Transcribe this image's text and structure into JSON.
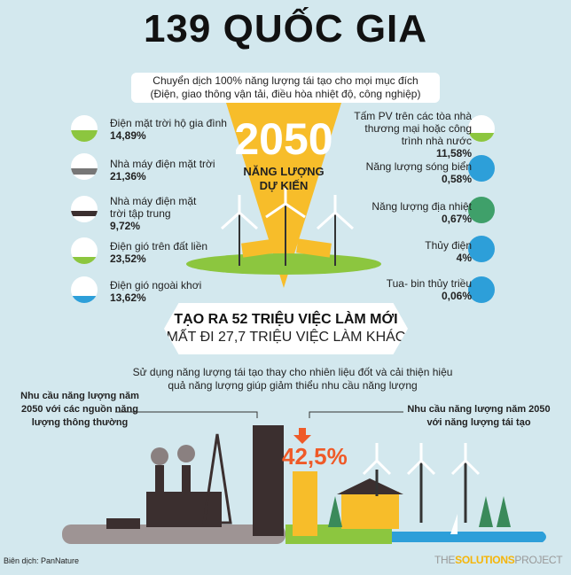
{
  "title": "139 QUỐC GIA",
  "top_box": {
    "line1": "Chuyển dịch 100% năng lượng tái tạo cho mọi mục đích",
    "line2": "(Điện, giao thông vận tải, điều hòa nhiệt độ, công nghiệp)"
  },
  "center": {
    "year": "2050",
    "label1": "NĂNG LƯỢNG",
    "label2": "DỰ KIẾN"
  },
  "left_items": [
    {
      "label": "Điện mặt trời hộ gia đình",
      "value": "14,89%",
      "icon": "rooftop-solar-icon"
    },
    {
      "label": "Nhà máy điện mặt trời",
      "value": "21,36%",
      "icon": "solar-plant-icon"
    },
    {
      "label": "Nhà máy điện mặt trời tập trung",
      "value": "9,72%",
      "icon": "concentrated-solar-icon"
    },
    {
      "label": "Điện gió trên đất liền",
      "value": "23,52%",
      "icon": "onshore-wind-icon"
    },
    {
      "label": "Điện gió ngoài khơi",
      "value": "13,62%",
      "icon": "offshore-wind-icon"
    }
  ],
  "right_items": [
    {
      "label": "Tấm PV trên các tòa nhà thương mại hoặc công trình nhà nước",
      "value": "11,58%",
      "icon": "commercial-pv-icon"
    },
    {
      "label": "Năng lượng sóng biển",
      "value": "0,58%",
      "icon": "wave-icon"
    },
    {
      "label": "Năng lượng địa nhiệt",
      "value": "0,67%",
      "icon": "geothermal-globe-icon"
    },
    {
      "label": "Thủy điện",
      "value": "4%",
      "icon": "hydro-drop-icon"
    },
    {
      "label": "Tua- bin thủy triều",
      "value": "0,06%",
      "icon": "tidal-turbine-icon"
    }
  ],
  "jobs": {
    "line1": "TẠO RA 52 TRIỆU VIỆC LÀM MỚI",
    "line2": "MẤT ĐI 27,7 TRIỆU VIỆC LÀM KHÁC"
  },
  "reduce_text": "Sử dụng năng lượng tái tạo thay cho nhiên liệu đốt và cải thiện hiệu quả năng lượng giúp giảm thiểu nhu cầu năng lượng",
  "demand_conventional": "Nhu cầu năng lượng năm 2050 với các nguồn năng lượng thông thường",
  "demand_renewable": "Nhu cầu năng lượng năm 2050 với năng lượng tái tạo",
  "reduction_pct": "42,5%",
  "credit": "Biên dịch: PanNature",
  "logo": {
    "the": "THE",
    "solutions": "SOLUTIONS",
    "project": "PROJECT"
  },
  "colors": {
    "background": "#d3e8ee",
    "yellow": "#f7bd2a",
    "orange": "#ef5a28",
    "dark": "#3b2f2f",
    "green": "#8cc63f",
    "water": "#2d9fd9"
  }
}
